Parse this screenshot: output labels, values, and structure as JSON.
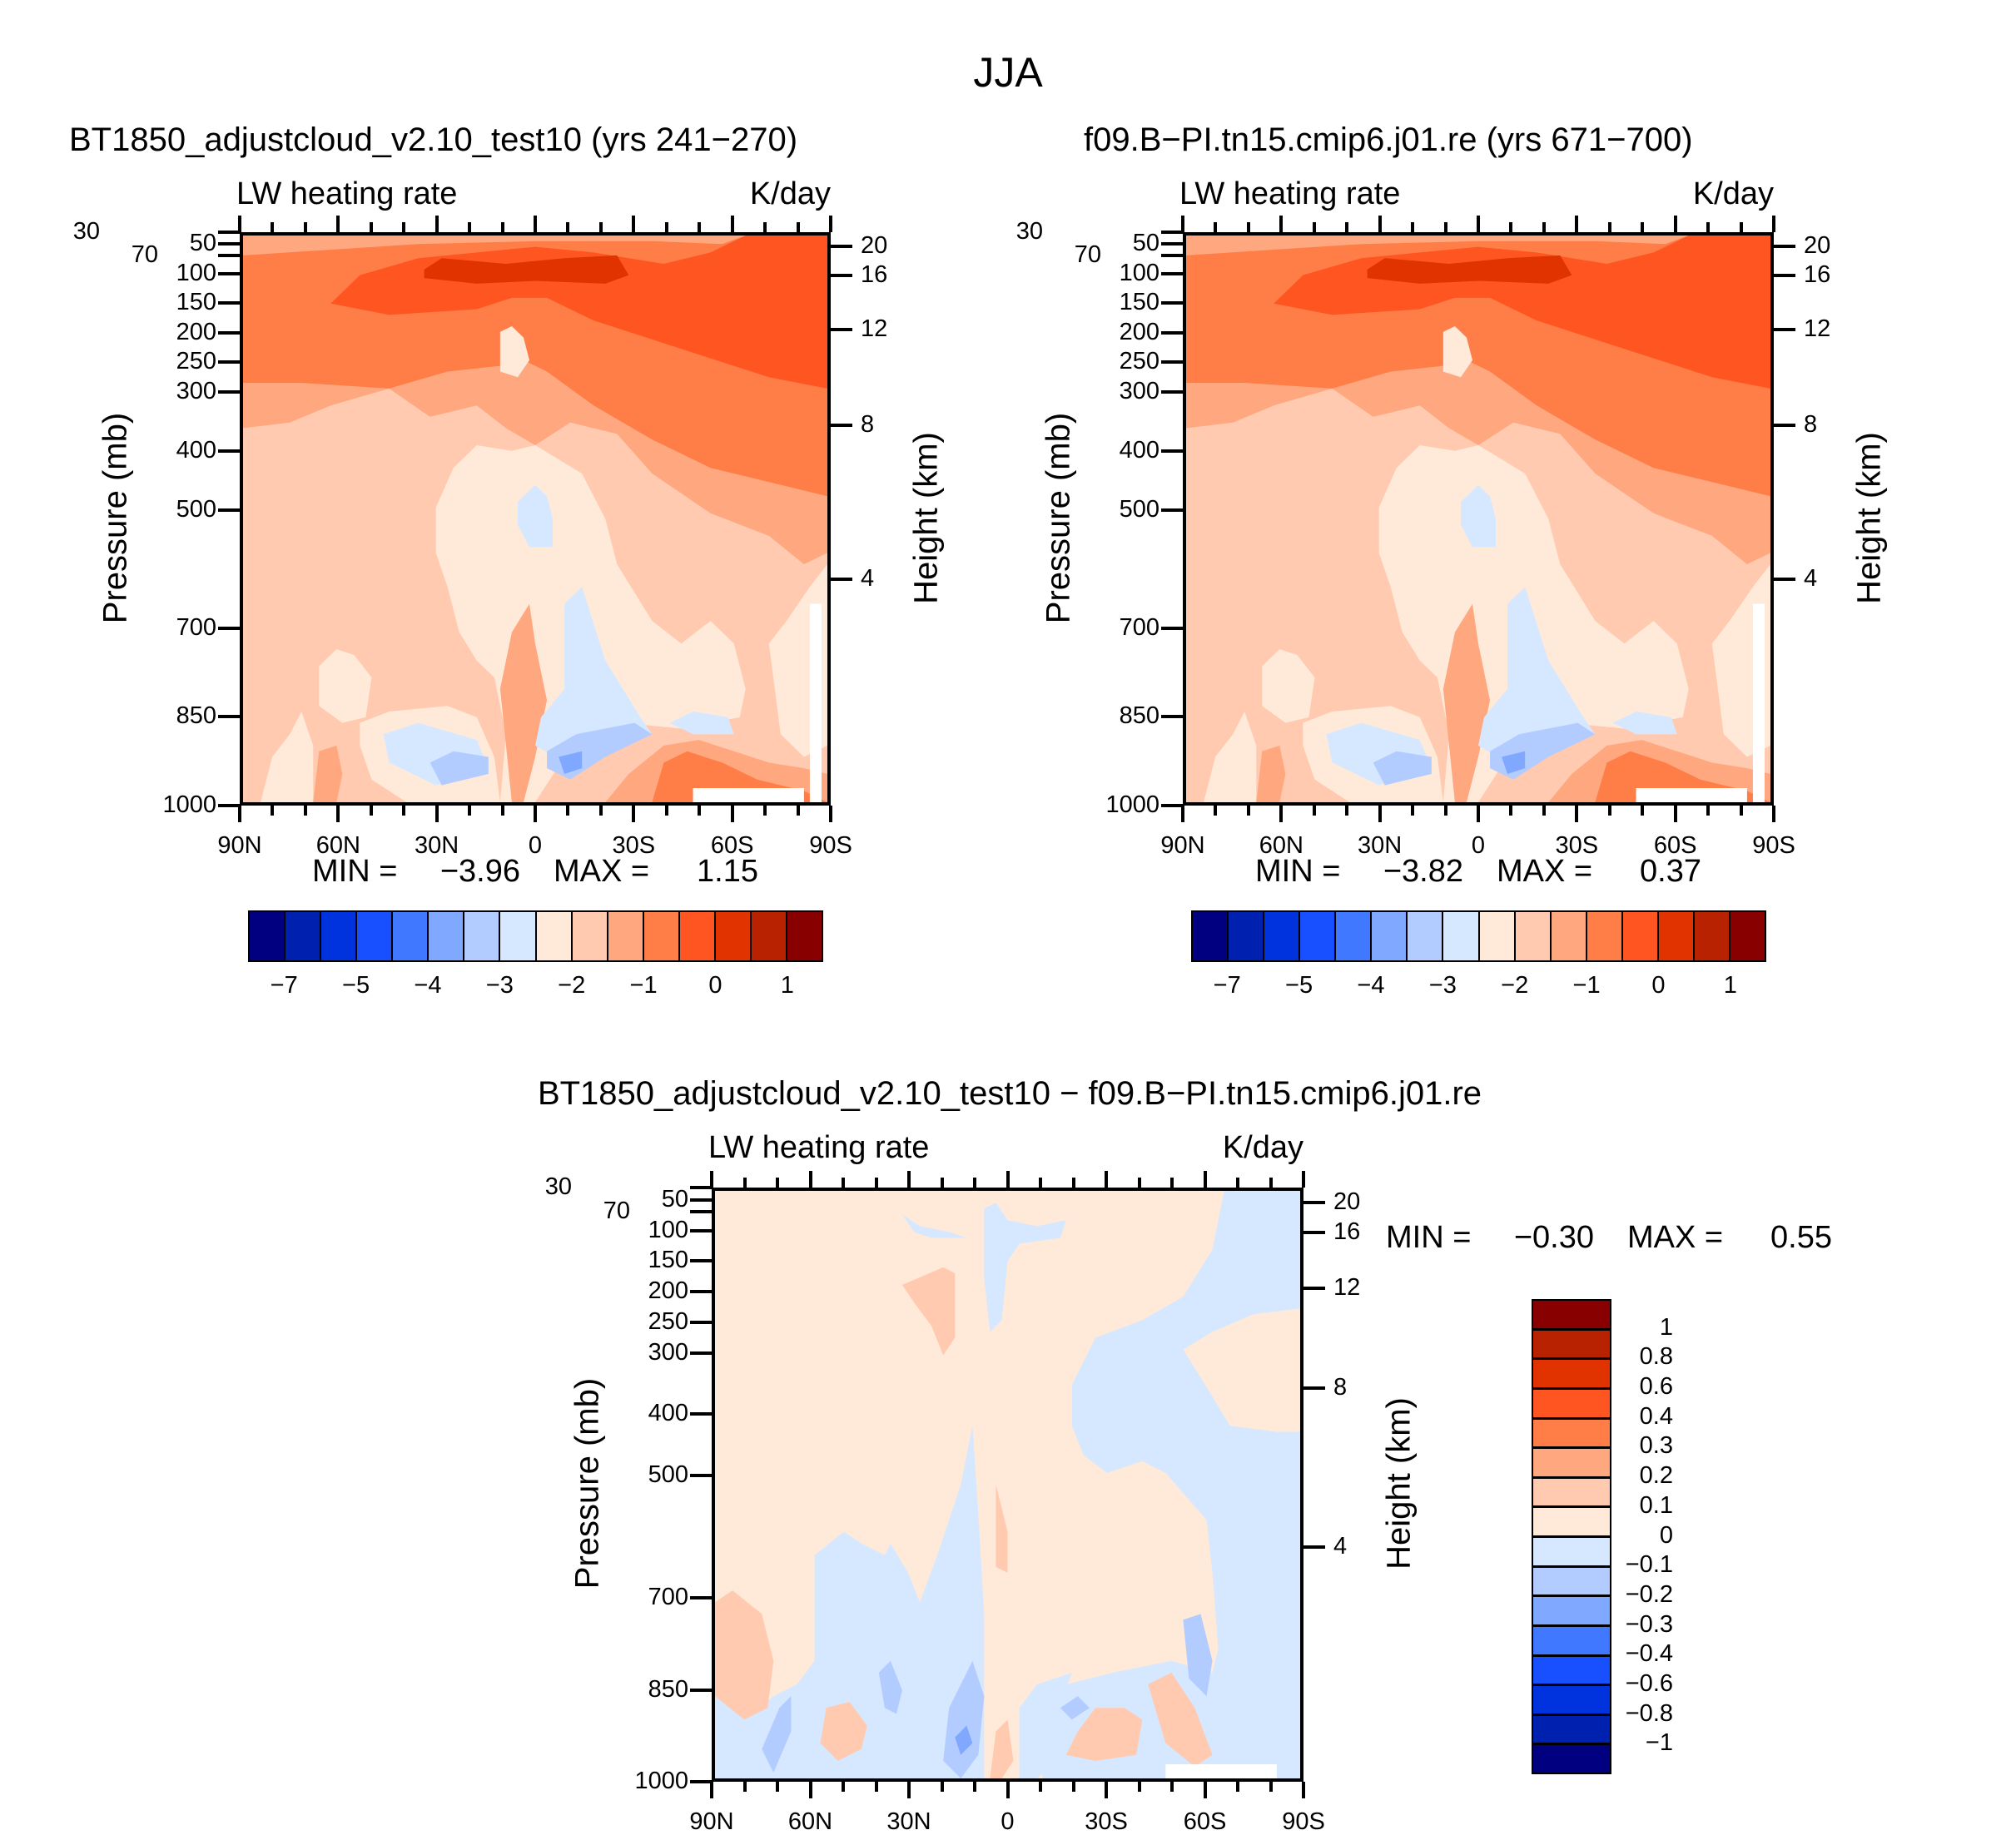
{
  "figure_title": "JJA",
  "axes": {
    "pressure_label": "Pressure (mb)",
    "height_label": "Height (km)",
    "pressure_ticks": [
      30,
      50,
      70,
      100,
      150,
      200,
      250,
      300,
      400,
      500,
      700,
      850,
      1000
    ],
    "pressure_range_mb": [
      30,
      1000
    ],
    "height_ticks": [
      {
        "label": "20",
        "mb": 54
      },
      {
        "label": "16",
        "mb": 103
      },
      {
        "label": "12",
        "mb": 195
      },
      {
        "label": "8",
        "mb": 357
      },
      {
        "label": "4",
        "mb": 617
      }
    ],
    "lat_ticks": [
      {
        "label": "90N",
        "lat": 90
      },
      {
        "label": "60N",
        "lat": 60
      },
      {
        "label": "30N",
        "lat": 30
      },
      {
        "label": "0",
        "lat": 0
      },
      {
        "label": "30S",
        "lat": -30
      },
      {
        "label": "60S",
        "lat": -60
      },
      {
        "label": "90S",
        "lat": -90
      }
    ]
  },
  "chart_data": [
    {
      "type": "heatmap",
      "title": "BT1850_adjustcloud_v2.10_test10 (yrs 241−270)",
      "left_label": "LW heating rate",
      "right_label": "K/day",
      "xlabel": "",
      "ylabel": "Pressure (mb)",
      "y2label": "Height (km)",
      "xlim": [
        90,
        -90
      ],
      "ylim": [
        30,
        1000
      ],
      "min_label": "MIN =",
      "min": "−3.96",
      "max_label": "MAX =",
      "max": "1.15",
      "colorbar": "abs"
    },
    {
      "type": "heatmap",
      "title": "f09.B−PI.tn15.cmip6.j01.re (yrs 671−700)",
      "left_label": "LW heating rate",
      "right_label": "K/day",
      "xlabel": "",
      "ylabel": "Pressure (mb)",
      "y2label": "Height (km)",
      "xlim": [
        90,
        -90
      ],
      "ylim": [
        30,
        1000
      ],
      "min_label": "MIN =",
      "min": "−3.82",
      "max_label": "MAX =",
      "max": "0.37",
      "colorbar": "abs"
    },
    {
      "type": "heatmap",
      "title": "BT1850_adjustcloud_v2.10_test10 − f09.B−PI.tn15.cmip6.j01.re",
      "left_label": "LW heating rate",
      "right_label": "K/day",
      "xlabel": "",
      "ylabel": "Pressure (mb)",
      "y2label": "Height (km)",
      "xlim": [
        90,
        -90
      ],
      "ylim": [
        30,
        1000
      ],
      "min_label": "MIN =",
      "min": "−0.30",
      "max_label": "MAX =",
      "max": "0.55",
      "colorbar": "diff"
    }
  ],
  "colorbars": {
    "colors": [
      "#000080",
      "#0020b0",
      "#0033dd",
      "#1850ff",
      "#4078ff",
      "#80a8ff",
      "#b3ccff",
      "#d6e8ff",
      "#ffead9",
      "#ffcab0",
      "#ffa880",
      "#ff7e48",
      "#ff5520",
      "#e03300",
      "#b82200",
      "#880000"
    ],
    "abs": {
      "labels": [
        {
          "text": "−7",
          "boundary": 1
        },
        {
          "text": "−5",
          "boundary": 3
        },
        {
          "text": "−4",
          "boundary": 5
        },
        {
          "text": "−3",
          "boundary": 7
        },
        {
          "text": "−2",
          "boundary": 9
        },
        {
          "text": "−1",
          "boundary": 11
        },
        {
          "text": "0",
          "boundary": 13
        },
        {
          "text": "1",
          "boundary": 15
        }
      ]
    },
    "diff": {
      "labels": [
        "1",
        "0.8",
        "0.6",
        "0.4",
        "0.3",
        "0.2",
        "0.1",
        "0",
        "−0.1",
        "−0.2",
        "−0.3",
        "−0.4",
        "−0.6",
        "−0.8",
        "−1"
      ]
    }
  }
}
